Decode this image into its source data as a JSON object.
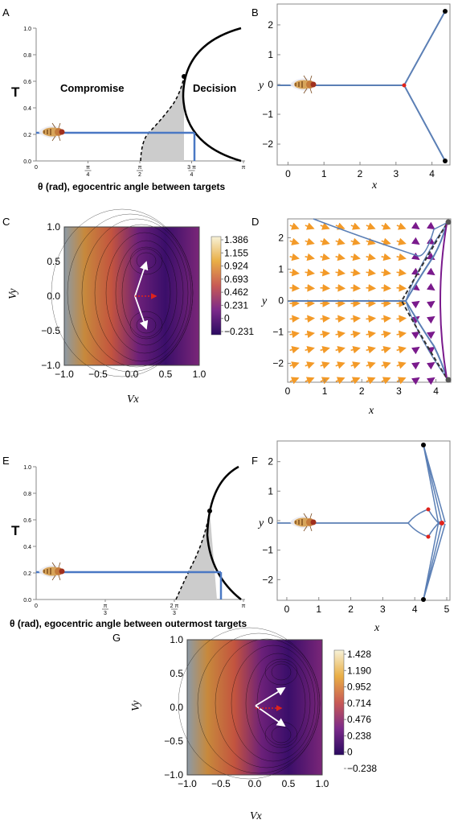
{
  "panels": {
    "A": "A",
    "B": "B",
    "C": "C",
    "D": "D",
    "E": "E",
    "F": "F",
    "G": "G"
  },
  "colors": {
    "blue": "#4a78c4",
    "steel": "#5b7fb5",
    "shade": "#cccccc",
    "red": "#e0231b",
    "orange": "#f39a28",
    "purple": "#7a1a8c",
    "dark_purple": "#2d0a5c"
  },
  "chart_data": [
    {
      "id": "A",
      "type": "line",
      "ylabel": "T",
      "xlabel": "θ (rad), egocentric angle between targets",
      "xlim": [
        0,
        3.1416
      ],
      "ylim": [
        0,
        1.0
      ],
      "yticks": [
        "0.0",
        "0.2",
        "0.4",
        "0.6",
        "0.8",
        "1.0"
      ],
      "xticks": [
        {
          "top": "π",
          "bottom": "4",
          "value": 0.7854
        },
        {
          "top": "π",
          "bottom": "2",
          "value": 1.5708
        },
        {
          "top": "3 π",
          "bottom": "4",
          "value": 2.3562
        },
        {
          "top": "π",
          "bottom": "",
          "value": 3.1416
        }
      ],
      "regions": [
        "Compromise",
        "Decision"
      ],
      "bifurcation_point": {
        "x": 2.2,
        "y": 0.64
      },
      "operating_point": {
        "x": 2.4,
        "y": 0.21
      }
    },
    {
      "id": "B",
      "type": "line",
      "xlabel": "x",
      "ylabel": "y",
      "xlim": [
        -0.3,
        4.5
      ],
      "ylim": [
        -2.7,
        2.7
      ],
      "xticks": [
        "0",
        "1",
        "2",
        "3",
        "4"
      ],
      "yticks": [
        "2",
        "1",
        "0",
        "−1",
        "−2"
      ],
      "bifurcation_point": {
        "x": 3.2,
        "y": 0
      },
      "targets": [
        {
          "x": 4.33,
          "y": 2.5
        },
        {
          "x": 4.33,
          "y": -2.5
        }
      ]
    },
    {
      "id": "C",
      "type": "heatmap",
      "xlabel": "Vx",
      "ylabel": "Vy",
      "xticks": [
        "−1.0",
        "−0.5",
        "0.0",
        "0.5",
        "1.0"
      ],
      "yticks": [
        "1.0",
        "0.5",
        "0.0",
        "−0.5",
        "−1.0"
      ],
      "colorbar_ticks": [
        "1.386",
        "1.155",
        "0.924",
        "0.693",
        "0.462",
        "0.231",
        "0",
        "−0.231"
      ],
      "minima": [
        {
          "x": 0.2,
          "y": 0.5
        },
        {
          "x": 0.2,
          "y": -0.5
        }
      ]
    },
    {
      "id": "D",
      "type": "line",
      "xlabel": "x",
      "ylabel": "y",
      "xlim": [
        0,
        4.4
      ],
      "ylim": [
        -2.6,
        2.6
      ],
      "xticks": [
        "0",
        "1",
        "2",
        "3",
        "4"
      ],
      "yticks": [
        "2",
        "1",
        "0",
        "−1",
        "−2"
      ]
    },
    {
      "id": "E",
      "type": "line",
      "ylabel": "T",
      "xlabel": "θ (rad), egocentric angle between outermost targets",
      "xlim": [
        0,
        3.1416
      ],
      "ylim": [
        0,
        1.0
      ],
      "yticks": [
        "0.0",
        "0.2",
        "0.4",
        "0.6",
        "0.8",
        "1.0"
      ],
      "xticks": [
        {
          "top": "π",
          "bottom": "3",
          "value": 1.0472
        },
        {
          "top": "2 π",
          "bottom": "3",
          "value": 2.0944
        },
        {
          "top": "π",
          "bottom": "",
          "value": 3.1416
        }
      ],
      "bifurcation_point": {
        "x": 2.65,
        "y": 0.66
      },
      "operating_point": {
        "x": 2.85,
        "y": 0.2
      }
    },
    {
      "id": "F",
      "type": "line",
      "xlabel": "x",
      "ylabel": "y",
      "xlim": [
        -0.3,
        5.1
      ],
      "ylim": [
        -2.7,
        2.7
      ],
      "xticks": [
        "0",
        "1",
        "2",
        "3",
        "4",
        "5"
      ],
      "yticks": [
        "2",
        "1",
        "0",
        "−1",
        "−2"
      ],
      "targets": [
        {
          "x": 4.33,
          "y": 2.5
        },
        {
          "x": 4.33,
          "y": -2.5
        }
      ]
    },
    {
      "id": "G",
      "type": "heatmap",
      "xlabel": "Vx",
      "ylabel": "Vy",
      "xticks": [
        "−1.0",
        "−0.5",
        "0.0",
        "0.5",
        "1.0"
      ],
      "yticks": [
        "1.0",
        "0.5",
        "0.0",
        "−0.5",
        "−1.0"
      ],
      "colorbar_ticks": [
        "1.428",
        "1.190",
        "0.952",
        "0.714",
        "0.476",
        "0.238",
        "0",
        "−0.238"
      ],
      "minima": [
        {
          "x": 0.4,
          "y": 0.3
        },
        {
          "x": 0.4,
          "y": -0.3
        }
      ]
    }
  ]
}
